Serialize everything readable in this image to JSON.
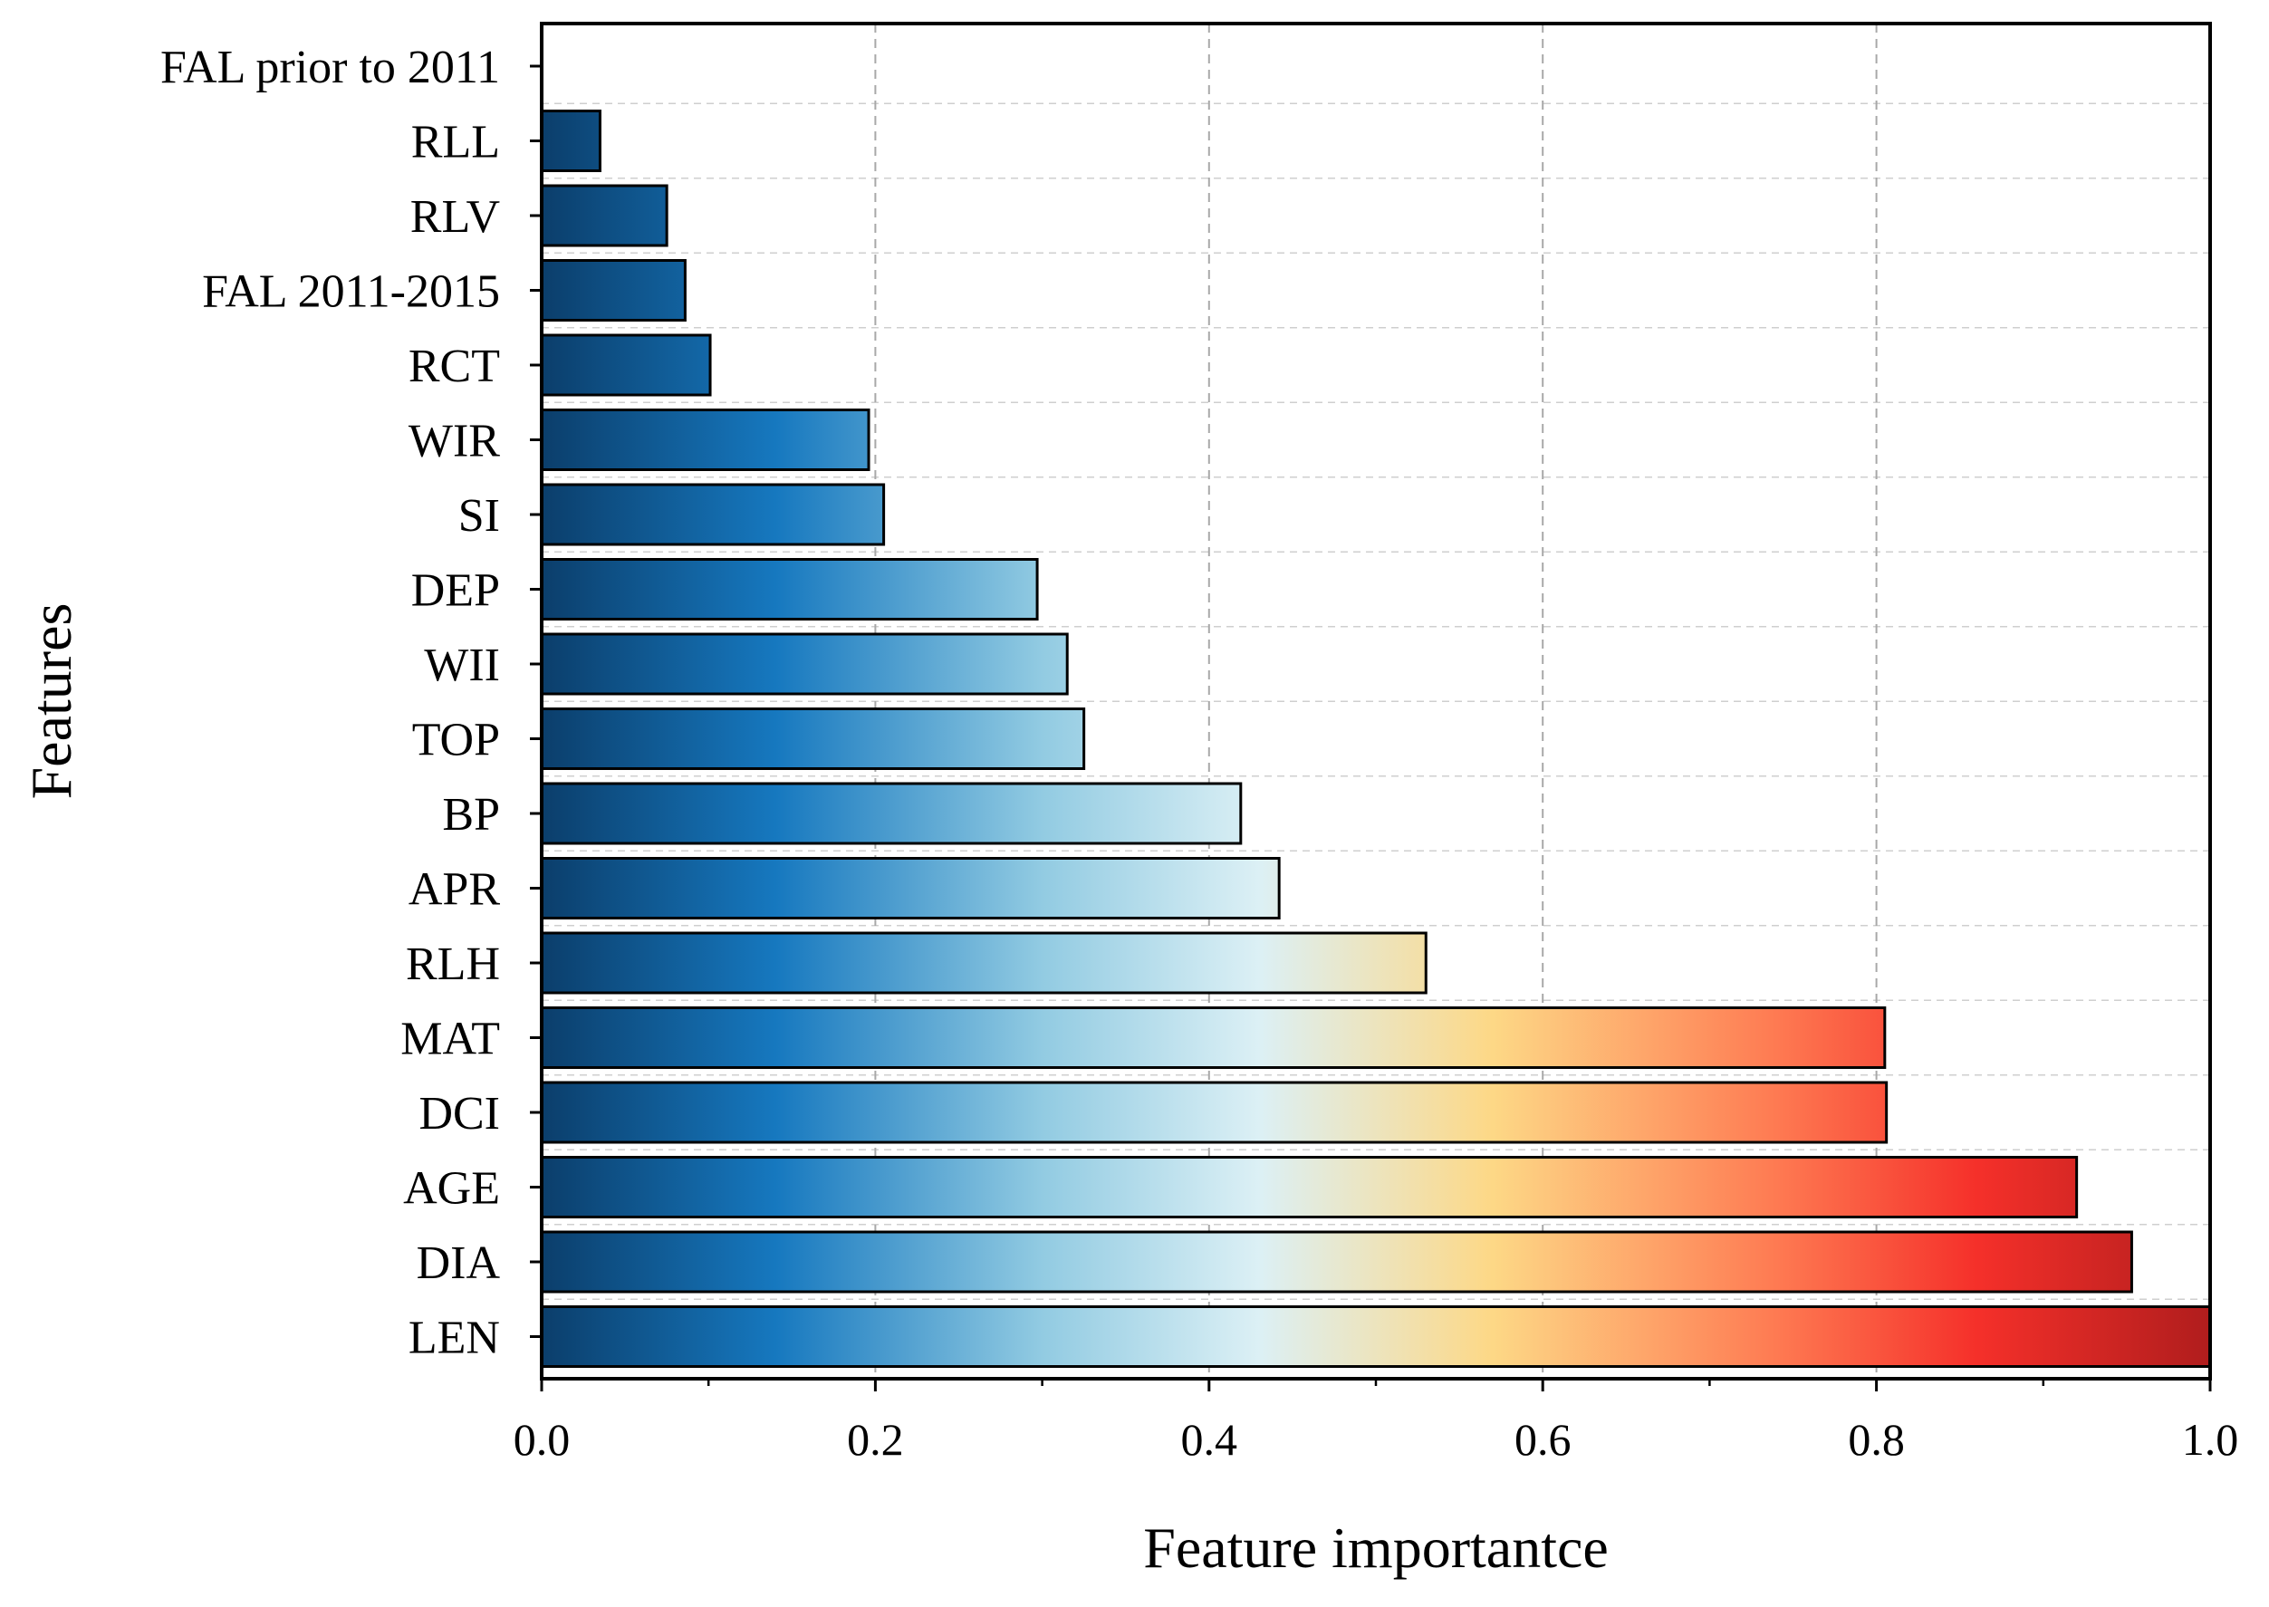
{
  "chart_data": {
    "type": "bar",
    "orientation": "horizontal",
    "xlabel": "Feature importantce",
    "ylabel": "Features",
    "xlim": [
      0.0,
      1.0
    ],
    "xticks": [
      "0.0",
      "0.2",
      "0.4",
      "0.6",
      "0.8",
      "1.0"
    ],
    "grid": true,
    "categories": [
      "FAL prior to 2011",
      "RLL",
      "RLV",
      "FAL 2011-2015",
      "RCT",
      "WIR",
      "SI",
      "DEP",
      "WII",
      "TOP",
      "BP",
      "APR",
      "RLH",
      "MAT",
      "DCI",
      "AGE",
      "DIA",
      "LEN"
    ],
    "values": [
      0.0,
      0.035,
      0.075,
      0.086,
      0.101,
      0.196,
      0.205,
      0.297,
      0.315,
      0.325,
      0.419,
      0.442,
      0.53,
      0.805,
      0.806,
      0.92,
      0.953,
      1.0
    ],
    "gradient_colors": [
      "#0b3e6b",
      "#1678bf",
      "#92cbe2",
      "#dcf0f5",
      "#fdd886",
      "#fe7a52",
      "#f5302a",
      "#b01d1d"
    ]
  }
}
